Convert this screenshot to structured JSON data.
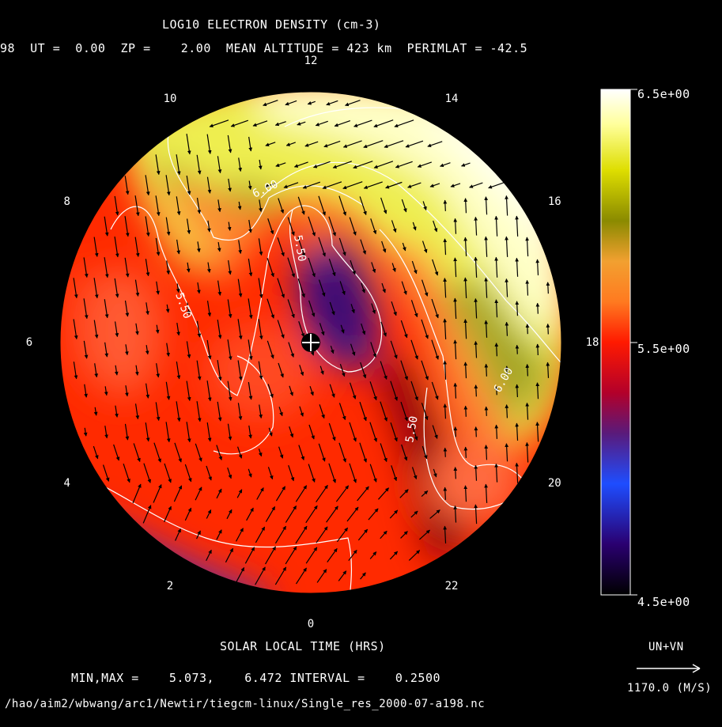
{
  "chart_data": {
    "type": "heatmap",
    "projection": "polar",
    "title": "LOG10 ELECTRON DENSITY (cm-3)",
    "subtitle": "98  UT =  0.00  ZP =    2.00  MEAN ALTITUDE = 423 km  PERIMLAT = -42.5",
    "xlabel": "SOLAR LOCAL TIME (HRS)",
    "hour_labels": [
      {
        "hour": 0,
        "label": "0"
      },
      {
        "hour": 2,
        "label": "2"
      },
      {
        "hour": 4,
        "label": "4"
      },
      {
        "hour": 6,
        "label": "6"
      },
      {
        "hour": 8,
        "label": "8"
      },
      {
        "hour": 10,
        "label": "10"
      },
      {
        "hour": 12,
        "label": "12"
      },
      {
        "hour": 14,
        "label": "14"
      },
      {
        "hour": 16,
        "label": "16"
      },
      {
        "hour": 18,
        "label": "18"
      },
      {
        "hour": 20,
        "label": "20"
      },
      {
        "hour": 22,
        "label": "22"
      }
    ],
    "colorbar": {
      "max_label": "6.5e+00",
      "mid_label": "5.5e+00",
      "min_label": "4.5e+00",
      "range": [
        4.5,
        6.5
      ],
      "colors": [
        "#000000",
        "#2a0070",
        "#1e4dff",
        "#5a1a7a",
        "#b3002a",
        "#ff1a00",
        "#ff7a20",
        "#f2a030",
        "#8a8a00",
        "#dede00",
        "#ffff9a",
        "#ffffff"
      ]
    },
    "contour_labels": [
      "6.00",
      "5.50",
      "5.50",
      "5.50",
      "6.00"
    ],
    "stats": {
      "min_label": "MIN,MAX =",
      "min": "5.073,",
      "max": "6.472",
      "interval_label": "INTERVAL =",
      "interval": "0.2500"
    },
    "vector_scale": {
      "name": "UN+VN",
      "value": "1170.0 (M/S)"
    },
    "file_path": "/hao/aim2/wbwang/arc1/Newtir/tiegcm-linux/Single_res_2000-07-a198.nc"
  }
}
